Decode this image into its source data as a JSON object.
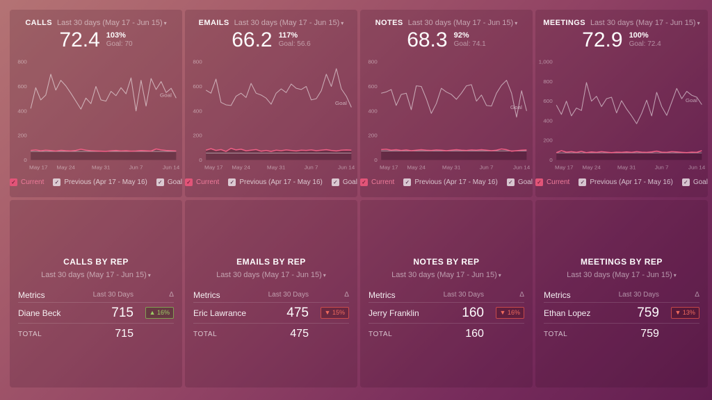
{
  "icons": {
    "chevron_down": "▾",
    "check": "✓"
  },
  "colors": {
    "bg_top_left": "#b47374",
    "bg_bottom_right": "#621e50",
    "current_pink": "#ee5f85",
    "previous_line": "rgba(255,255,255,0.55)",
    "badge_up_green": "#9ccc65",
    "badge_down_red": "#ef6a5e"
  },
  "legend": {
    "current": "Current",
    "previous": "Previous (Apr 17 - May 16)",
    "goal": "Goal"
  },
  "kpi_cards": [
    {
      "title": "CALLS",
      "range": "Last 30 days (May 17 - Jun 15)",
      "value": "72.4",
      "percent": "103%",
      "goal": "Goal: 70"
    },
    {
      "title": "EMAILS",
      "range": "Last 30 days (May 17 - Jun 15)",
      "value": "66.2",
      "percent": "117%",
      "goal": "Goal: 56.6"
    },
    {
      "title": "NOTES",
      "range": "Last 30 days (May 17 - Jun 15)",
      "value": "68.3",
      "percent": "92%",
      "goal": "Goal: 74.1"
    },
    {
      "title": "MEETINGS",
      "range": "Last 30 days (May 17 - Jun 15)",
      "value": "72.9",
      "percent": "100%",
      "goal": "Goal: 72.4"
    }
  ],
  "chart_data": [
    {
      "type": "line",
      "title": "CALLS",
      "x_labels": [
        "May 17",
        "May 24",
        "May 31",
        "Jun 7",
        "Jun 14"
      ],
      "y_ticks": [
        "800",
        "600",
        "400",
        "200",
        "0"
      ],
      "ylim": [
        0,
        800
      ],
      "grid": false,
      "legend_position": "bottom",
      "goal_label": "Goal",
      "goal_label_value": 530,
      "goal_value": 70,
      "series": [
        {
          "name": "Current",
          "color": "#ee5f85",
          "values": [
            78,
            82,
            75,
            80,
            77,
            73,
            79,
            76,
            74,
            78,
            88,
            80,
            76,
            74,
            72,
            70,
            75,
            78,
            74,
            76,
            72,
            74,
            77,
            75,
            73,
            90,
            82,
            78,
            76,
            74
          ]
        },
        {
          "name": "Previous (Apr 17 - May 16)",
          "color": "rgba(255,255,255,0.55)",
          "values": [
            420,
            590,
            490,
            530,
            700,
            570,
            650,
            605,
            545,
            480,
            415,
            505,
            460,
            600,
            490,
            480,
            560,
            525,
            590,
            540,
            670,
            400,
            650,
            440,
            665,
            575,
            640,
            550,
            585,
            505
          ]
        }
      ]
    },
    {
      "type": "line",
      "title": "EMAILS",
      "x_labels": [
        "May 17",
        "May 24",
        "May 31",
        "Jun 7",
        "Jun 14"
      ],
      "y_ticks": [
        "800",
        "600",
        "400",
        "200",
        "0"
      ],
      "ylim": [
        0,
        800
      ],
      "grid": false,
      "legend_position": "bottom",
      "goal_label": "Goal",
      "goal_label_value": 465,
      "goal_value": 56.6,
      "series": [
        {
          "name": "Current",
          "color": "#ee5f85",
          "values": [
            80,
            92,
            78,
            85,
            70,
            95,
            82,
            88,
            75,
            80,
            85,
            72,
            78,
            70,
            80,
            76,
            82,
            78,
            74,
            80,
            78,
            82,
            76,
            80,
            84,
            78,
            74,
            80,
            82,
            80
          ]
        },
        {
          "name": "Previous (Apr 17 - May 16)",
          "color": "rgba(255,255,255,0.55)",
          "values": [
            570,
            545,
            660,
            470,
            450,
            445,
            520,
            545,
            510,
            625,
            545,
            530,
            505,
            455,
            545,
            580,
            550,
            620,
            585,
            575,
            600,
            490,
            500,
            565,
            700,
            600,
            745,
            580,
            520,
            430
          ]
        }
      ]
    },
    {
      "type": "line",
      "title": "NOTES",
      "x_labels": [
        "May 17",
        "May 24",
        "May 31",
        "Jun 7",
        "Jun 14"
      ],
      "y_ticks": [
        "800",
        "600",
        "400",
        "200",
        "0"
      ],
      "ylim": [
        0,
        800
      ],
      "grid": false,
      "legend_position": "bottom",
      "goal_label": "Goal",
      "goal_label_value": 430,
      "goal_value": 74.1,
      "series": [
        {
          "name": "Current",
          "color": "#ee5f85",
          "values": [
            85,
            88,
            80,
            84,
            78,
            82,
            76,
            80,
            84,
            80,
            78,
            82,
            80,
            76,
            80,
            84,
            80,
            78,
            82,
            80,
            84,
            80,
            76,
            80,
            90,
            84,
            72,
            76,
            80,
            82
          ]
        },
        {
          "name": "Previous (Apr 17 - May 16)",
          "color": "rgba(255,255,255,0.55)",
          "values": [
            545,
            555,
            575,
            445,
            535,
            545,
            410,
            605,
            600,
            500,
            380,
            460,
            585,
            555,
            535,
            495,
            545,
            605,
            615,
            480,
            530,
            445,
            440,
            545,
            610,
            650,
            545,
            350,
            565,
            400
          ]
        }
      ]
    },
    {
      "type": "line",
      "title": "MEETINGS",
      "x_labels": [
        "May 17",
        "May 24",
        "May 31",
        "Jun 7",
        "Jun 14"
      ],
      "y_ticks": [
        "1,000",
        "800",
        "600",
        "400",
        "200",
        "0"
      ],
      "ylim": [
        0,
        1000
      ],
      "grid": false,
      "legend_position": "bottom",
      "goal_label": "Goal",
      "goal_label_value": 610,
      "goal_value": 72.4,
      "series": [
        {
          "name": "Current",
          "color": "#ee5f85",
          "values": [
            75,
            95,
            80,
            85,
            78,
            88,
            75,
            82,
            78,
            85,
            80,
            75,
            80,
            78,
            82,
            78,
            85,
            80,
            78,
            82,
            90,
            80,
            78,
            85,
            82,
            78,
            75,
            80,
            78,
            95
          ]
        },
        {
          "name": "Previous (Apr 17 - May 16)",
          "color": "rgba(255,255,255,0.55)",
          "values": [
            560,
            465,
            600,
            450,
            530,
            505,
            790,
            600,
            650,
            545,
            625,
            640,
            480,
            605,
            520,
            450,
            370,
            475,
            610,
            450,
            690,
            545,
            455,
            590,
            730,
            625,
            700,
            660,
            640,
            565
          ]
        }
      ]
    }
  ],
  "table_cards": [
    {
      "title": "CALLS BY REP",
      "range": "Last 30 days (May 17 - Jun 15)",
      "headers": {
        "metrics": "Metrics",
        "period": "Last 30 Days",
        "delta": "Δ"
      },
      "row": {
        "name": "Diane Beck",
        "value": "715",
        "delta": "▲ 16%",
        "delta_dir": "up"
      },
      "total_label": "TOTAL",
      "total_value": "715"
    },
    {
      "title": "EMAILS BY REP",
      "range": "Last 30 days (May 17 - Jun 15)",
      "headers": {
        "metrics": "Metrics",
        "period": "Last 30 Days",
        "delta": "Δ"
      },
      "row": {
        "name": "Eric Lawrance",
        "value": "475",
        "delta": "▼ 15%",
        "delta_dir": "down"
      },
      "total_label": "TOTAL",
      "total_value": "475"
    },
    {
      "title": "NOTES BY REP",
      "range": "Last 30 days (May 17 - Jun 15)",
      "headers": {
        "metrics": "Metrics",
        "period": "Last 30 Days",
        "delta": "Δ"
      },
      "row": {
        "name": "Jerry Franklin",
        "value": "160",
        "delta": "▼ 16%",
        "delta_dir": "down"
      },
      "total_label": "TOTAL",
      "total_value": "160"
    },
    {
      "title": "MEETINGS BY REP",
      "range": "Last 30 days (May 17 - Jun 15)",
      "headers": {
        "metrics": "Metrics",
        "period": "Last 30 Days",
        "delta": "Δ"
      },
      "row": {
        "name": "Ethan Lopez",
        "value": "759",
        "delta": "▼ 13%",
        "delta_dir": "down"
      },
      "total_label": "TOTAL",
      "total_value": "759"
    }
  ]
}
